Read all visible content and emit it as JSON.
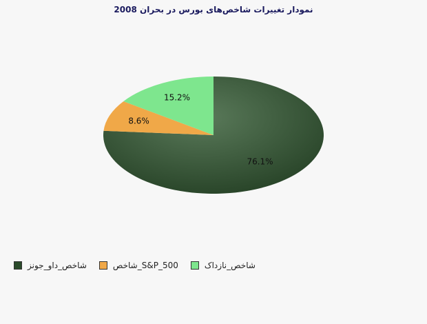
{
  "chart_data": {
    "type": "pie",
    "title": "نمودار تغییرات شاخص‌های بورس در بحران 2008",
    "slices": [
      {
        "name": "شاخص_داو_جونز",
        "value": 76.1,
        "label": "76.1%",
        "color": "#2a4a2a"
      },
      {
        "name": "شاخص_S&P_500",
        "value": 8.6,
        "label": "8.6%",
        "color": "#f0a848"
      },
      {
        "name": "شاخص_نازداک",
        "value": 15.2,
        "label": "15.2%",
        "color": "#7ee68e"
      }
    ],
    "legend": "bottom-left"
  }
}
